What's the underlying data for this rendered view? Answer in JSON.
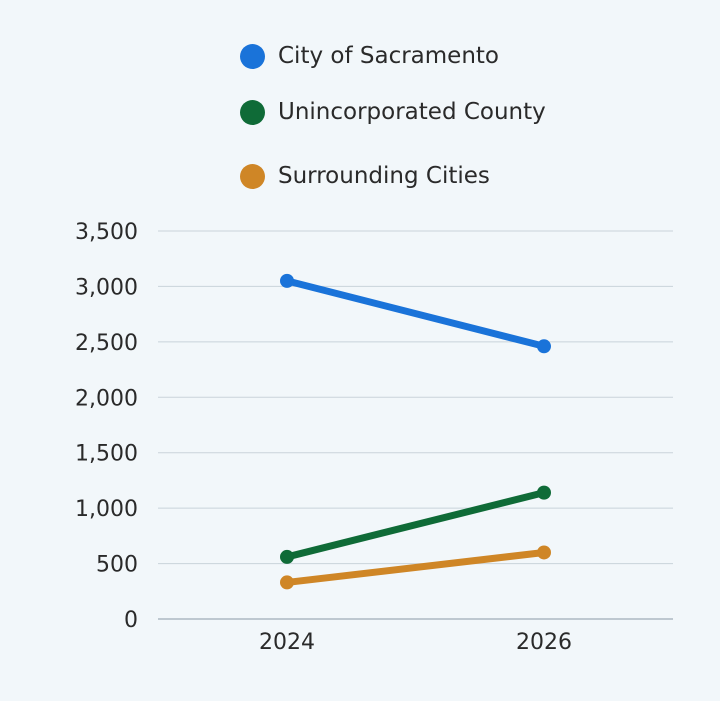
{
  "chart_data": {
    "type": "line",
    "title": "",
    "xlabel": "",
    "ylabel": "",
    "x": [
      "2024",
      "2026"
    ],
    "ylim": [
      0,
      3500
    ],
    "yticks": [
      "3,500",
      "3,000",
      "2,500",
      "2,000",
      "1,500",
      "1,000",
      "500",
      "0"
    ],
    "ytick_values": [
      3500,
      3000,
      2500,
      2000,
      1500,
      1000,
      500,
      0
    ],
    "grid": true,
    "legend_position": "top",
    "series": [
      {
        "name": "City of Sacramento",
        "color": "#1a73d9",
        "values": [
          3050,
          2460
        ]
      },
      {
        "name": "Unincorporated County",
        "color": "#0f6b37",
        "values": [
          560,
          1140
        ]
      },
      {
        "name": "Surrounding Cities",
        "color": "#cf8626",
        "values": [
          330,
          600
        ]
      }
    ]
  }
}
